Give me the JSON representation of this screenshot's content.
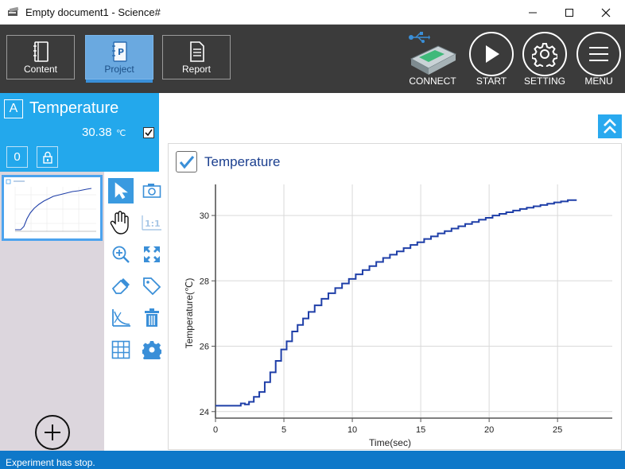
{
  "window": {
    "title": "Empty document1 - Science#",
    "minimize_icon": "minimize-icon",
    "maximize_icon": "maximize-icon",
    "close_icon": "close-icon"
  },
  "tabs": [
    {
      "label": "Content",
      "icon": "content-notebook-icon",
      "active": false
    },
    {
      "label": "Project",
      "icon": "project-document-icon",
      "active": true
    },
    {
      "label": "Report",
      "icon": "report-document-icon",
      "active": false
    }
  ],
  "controls": {
    "connect_label": "CONNECT",
    "start_label": "START",
    "setting_label": "SETTING",
    "menu_label": "MENU"
  },
  "sensor": {
    "badge": "A",
    "name": "Temperature",
    "value": "30.38",
    "unit": "℃",
    "checked": true,
    "zero_label": "0"
  },
  "colors": {
    "accent": "#23a8ec",
    "toolbar": "#3b3b3b",
    "series": "#1f3fa8",
    "status_bar": "#0e78c9"
  },
  "graph": {
    "title": "Temperature",
    "checked": true
  },
  "chart_data": {
    "type": "line",
    "title": "Temperature",
    "xlabel": "Time(sec)",
    "ylabel": "Temperature(℃)",
    "xlim": [
      0,
      29
    ],
    "ylim": [
      23.8,
      30.95
    ],
    "xticks": [
      0,
      5,
      10,
      15,
      20,
      25
    ],
    "yticks": [
      24,
      26,
      28,
      30
    ],
    "grid": true,
    "series": [
      {
        "color": "#1f3fa8",
        "x": [
          0,
          1,
          1.7,
          2,
          2.3,
          2.6,
          3.0,
          3.4,
          3.8,
          4.2,
          4.6,
          5.0,
          5.4,
          5.8,
          6.2,
          6.6,
          7.0,
          7.5,
          8.0,
          8.5,
          9.0,
          9.5,
          10.0,
          10.5,
          11.0,
          11.5,
          12.0,
          12.5,
          13.0,
          13.5,
          14.0,
          14.5,
          15.0,
          15.5,
          16.0,
          16.5,
          17.0,
          17.5,
          18.0,
          18.5,
          19.0,
          19.5,
          20.0,
          20.5,
          21.0,
          21.5,
          22.0,
          22.5,
          23.0,
          23.5,
          24.0,
          24.5,
          25.0,
          25.5,
          26.0,
          26.4
        ],
        "y": [
          24.18,
          24.18,
          24.18,
          24.25,
          24.22,
          24.3,
          24.45,
          24.6,
          24.9,
          25.2,
          25.55,
          25.9,
          26.15,
          26.45,
          26.65,
          26.85,
          27.05,
          27.25,
          27.45,
          27.62,
          27.78,
          27.92,
          28.06,
          28.2,
          28.33,
          28.45,
          28.58,
          28.7,
          28.8,
          28.9,
          29.0,
          29.1,
          29.18,
          29.28,
          29.36,
          29.45,
          29.52,
          29.6,
          29.67,
          29.74,
          29.8,
          29.87,
          29.93,
          30.0,
          30.05,
          30.1,
          30.15,
          30.2,
          30.24,
          30.28,
          30.32,
          30.36,
          30.4,
          30.43,
          30.47,
          30.47
        ]
      }
    ]
  },
  "status": {
    "text": "Experiment has stop."
  }
}
